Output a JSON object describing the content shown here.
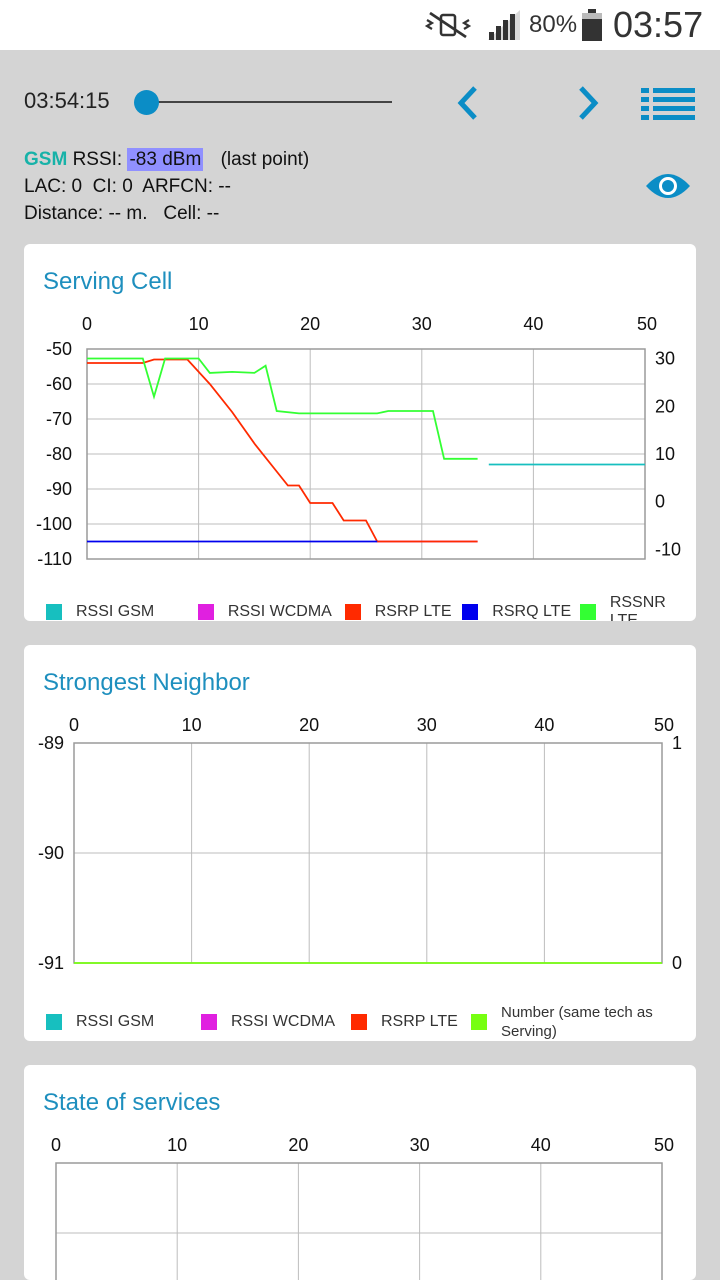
{
  "status_bar": {
    "battery_percent": "80%",
    "clock": "03:57",
    "icons": [
      "vibrate-mute-icon",
      "signal-icon",
      "battery-icon"
    ]
  },
  "toolbar": {
    "time": "03:54:15",
    "slider_position": 0,
    "icons": [
      "chevron-left-icon",
      "chevron-right-icon",
      "list-icon"
    ]
  },
  "info": {
    "tech": "GSM",
    "rssi_label": "RSSI:",
    "rssi_value": "-83 dBm",
    "last_point": "(last point)",
    "line2": "LAC: 0  CI: 0  ARFCN: --",
    "line3": "Distance: -- m.   Cell: --"
  },
  "colors": {
    "accent": "#1e8fbe",
    "gsm": "#17bfbf",
    "wcdma": "#e020e0",
    "lte_rsrp": "#ff2a00",
    "lte_rsrq": "#0000ee",
    "lte_rssnr": "#33ff33",
    "neighbor_number": "#77ff11"
  },
  "cards": {
    "serving": {
      "title": "Serving Cell",
      "legend": [
        "RSSI GSM",
        "RSSI WCDMA",
        "RSRP LTE",
        "RSRQ LTE",
        "RSSNR LTE"
      ]
    },
    "neighbor": {
      "title": "Strongest Neighbor",
      "legend": [
        "RSSI GSM",
        "RSSI WCDMA",
        "RSRP LTE",
        "Number (same tech as Serving)"
      ]
    },
    "services": {
      "title": "State of services"
    }
  },
  "chart_data": [
    {
      "type": "line",
      "title": "Serving Cell",
      "x_ticks": [
        "0",
        "10",
        "20",
        "30",
        "40",
        "50"
      ],
      "xlim": [
        0,
        50
      ],
      "y_left_ticks": [
        "-50",
        "-60",
        "-70",
        "-80",
        "-90",
        "-100",
        "-110"
      ],
      "ylim_left": [
        -110,
        -50
      ],
      "y_right_ticks": [
        "30",
        "20",
        "10",
        "0",
        "-10"
      ],
      "ylim_right": [
        -12,
        32
      ],
      "grid": true,
      "legend_position": "bottom",
      "series": [
        {
          "name": "RSSI GSM",
          "axis": "left",
          "color": "#17bfbf",
          "points": [
            [
              36,
              -83
            ],
            [
              50,
              -83
            ]
          ]
        },
        {
          "name": "RSSI WCDMA",
          "axis": "left",
          "color": "#e020e0",
          "points": [
            [
              26,
              -105
            ],
            [
              35,
              -105
            ]
          ]
        },
        {
          "name": "RSRP LTE",
          "axis": "left",
          "color": "#ff2a00",
          "points": [
            [
              0,
              -54
            ],
            [
              5,
              -54
            ],
            [
              6,
              -53
            ],
            [
              9,
              -53
            ],
            [
              11,
              -60
            ],
            [
              13,
              -68
            ],
            [
              15,
              -77
            ],
            [
              17,
              -85
            ],
            [
              18,
              -89
            ],
            [
              19,
              -89
            ],
            [
              20,
              -94
            ],
            [
              22,
              -94
            ],
            [
              23,
              -99
            ],
            [
              25,
              -99
            ],
            [
              26,
              -105
            ],
            [
              35,
              -105
            ]
          ]
        },
        {
          "name": "RSRQ LTE",
          "axis": "left",
          "color": "#0000ee",
          "points": [
            [
              0,
              -105
            ],
            [
              26,
              -105
            ]
          ]
        },
        {
          "name": "RSSNR LTE",
          "axis": "right",
          "color": "#33ff33",
          "points": [
            [
              0,
              30
            ],
            [
              5,
              30
            ],
            [
              6,
              22
            ],
            [
              7,
              30
            ],
            [
              10,
              30
            ],
            [
              11,
              27
            ],
            [
              13,
              27.2
            ],
            [
              15,
              27
            ],
            [
              16,
              28.5
            ],
            [
              17,
              19
            ],
            [
              19,
              18.5
            ],
            [
              26,
              18.5
            ],
            [
              27,
              19
            ],
            [
              31,
              19
            ],
            [
              32,
              9
            ],
            [
              35,
              9
            ]
          ]
        }
      ]
    },
    {
      "type": "line",
      "title": "Strongest Neighbor",
      "x_ticks": [
        "0",
        "10",
        "20",
        "30",
        "40",
        "50"
      ],
      "xlim": [
        0,
        50
      ],
      "y_left_ticks": [
        "-89",
        "-90",
        "-91"
      ],
      "ylim_left": [
        -91,
        -89
      ],
      "y_right_ticks": [
        "1",
        "0"
      ],
      "ylim_right": [
        0,
        1
      ],
      "grid": true,
      "legend_position": "bottom",
      "series": [
        {
          "name": "Number (same tech as Serving)",
          "axis": "right",
          "color": "#77ff11",
          "points": [
            [
              0,
              0
            ],
            [
              50,
              0
            ]
          ]
        }
      ]
    },
    {
      "type": "line",
      "title": "State of services",
      "x_ticks": [
        "0",
        "10",
        "20",
        "30",
        "40",
        "50"
      ],
      "xlim": [
        0,
        50
      ],
      "grid": true,
      "series": []
    }
  ]
}
